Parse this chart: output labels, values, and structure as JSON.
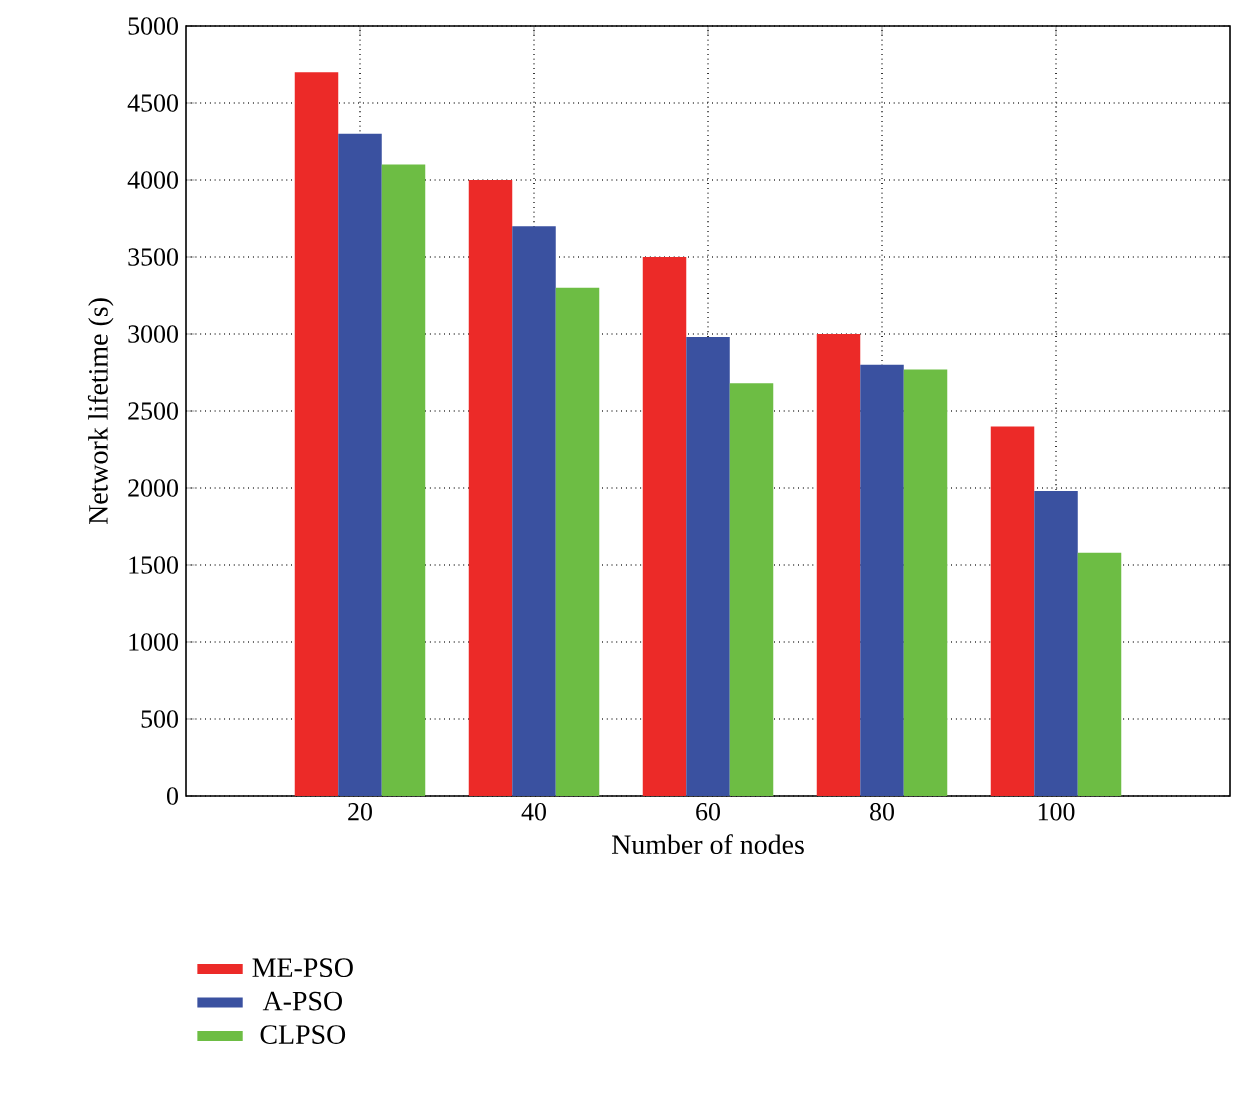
{
  "chart_data": {
    "type": "bar",
    "xlabel": "Number of nodes",
    "ylabel": "Network lifetime (s)",
    "categories": [
      "20",
      "40",
      "60",
      "80",
      "100"
    ],
    "series": [
      {
        "name": "ME-PSO",
        "color": "#ec2a28",
        "values": [
          4700,
          4000,
          3500,
          3000,
          2400
        ]
      },
      {
        "name": "A-PSO",
        "color": "#3a51a0",
        "values": [
          4300,
          3700,
          2980,
          2800,
          1980
        ]
      },
      {
        "name": "CLPSO",
        "color": "#6dbd44",
        "values": [
          4100,
          3300,
          2680,
          2770,
          1580
        ]
      }
    ],
    "ylim": [
      0,
      5000
    ],
    "yticks": [
      0,
      500,
      1000,
      1500,
      2000,
      2500,
      3000,
      3500,
      4000,
      4500,
      5000
    ],
    "grid": true,
    "legend": "bottom left"
  }
}
